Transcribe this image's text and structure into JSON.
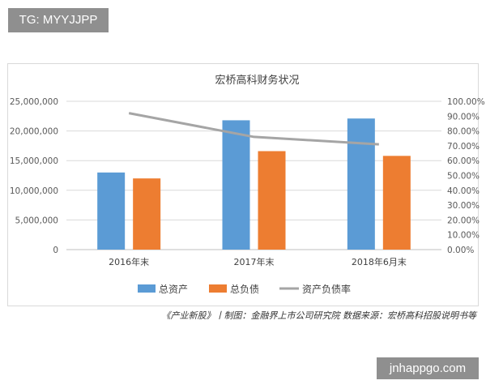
{
  "watermark_top": "TG: MYYJJPP",
  "watermark_bottom": "jnhappgo.com",
  "caption": "《产业新股》丨制图：金融界上市公司研究院 数据来源：宏桥高科招股说明书等",
  "chart_data": {
    "type": "bar",
    "title": "宏桥高科财务状况",
    "categories": [
      "2016年末",
      "2017年末",
      "2018年6月末"
    ],
    "series": [
      {
        "name": "总资产",
        "kind": "bar",
        "axis": "left",
        "color": "#5b9bd5",
        "values": [
          13000000,
          21800000,
          22100000
        ]
      },
      {
        "name": "总负债",
        "kind": "bar",
        "axis": "left",
        "color": "#ed7d31",
        "values": [
          12000000,
          16600000,
          15800000
        ]
      },
      {
        "name": "资产负债率",
        "kind": "line",
        "axis": "right",
        "color": "#a5a5a5",
        "values": [
          92,
          76,
          71
        ]
      }
    ],
    "ylim": [
      0,
      25000000
    ],
    "yticks": [
      "0",
      "5,000,000",
      "10,000,000",
      "15,000,000",
      "20,000,000",
      "25,000,000"
    ],
    "y2lim": [
      0,
      100
    ],
    "y2ticks": [
      "0.00%",
      "10.00%",
      "20.00%",
      "30.00%",
      "40.00%",
      "50.00%",
      "60.00%",
      "70.00%",
      "80.00%",
      "90.00%",
      "100.00%"
    ],
    "grid": true,
    "legend_position": "bottom"
  }
}
